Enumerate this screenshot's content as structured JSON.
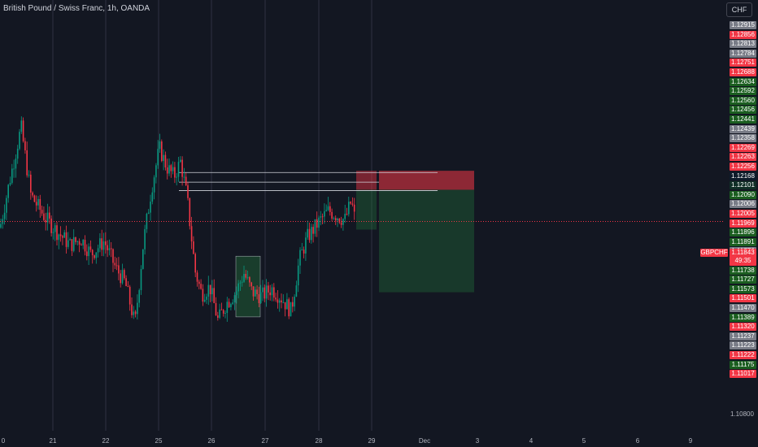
{
  "header": {
    "symbol_title": "British Pound / Swiss Franc, 1h, OANDA",
    "currency_button": "CHF"
  },
  "price_axis": {
    "badges": [
      {
        "label": "1.12915",
        "color": "#787b86"
      },
      {
        "label": "1.12856",
        "color": "#f23645"
      },
      {
        "label": "1.12813",
        "color": "#787b86"
      },
      {
        "label": "1.12784",
        "color": "#787b86"
      },
      {
        "label": "1.12751",
        "color": "#f23645"
      },
      {
        "label": "1.12688",
        "color": "#f23645"
      },
      {
        "label": "1.12634",
        "color": "#1b5e20"
      },
      {
        "label": "1.12592",
        "color": "#1b5e20"
      },
      {
        "label": "1.12560",
        "color": "#1b5e20"
      },
      {
        "label": "1.12456",
        "color": "#1b5e20"
      },
      {
        "label": "1.12441",
        "color": "#1b5e20"
      },
      {
        "label": "1.12439",
        "color": "#787b86"
      },
      {
        "label": "1.12358",
        "color": "#787b86"
      },
      {
        "label": "1.12269",
        "color": "#f23645"
      },
      {
        "label": "1.12263",
        "color": "#f23645"
      },
      {
        "label": "1.12256",
        "color": "#f23645"
      },
      {
        "label": "1.12168",
        "color": "#0d1b2a"
      },
      {
        "label": "1.12101",
        "color": "#0f2e26"
      },
      {
        "label": "1.12090",
        "color": "#1b5e20"
      },
      {
        "label": "1.12006",
        "color": "#787b86"
      },
      {
        "label": "1.12005",
        "color": "#f23645"
      },
      {
        "label": "1.11969",
        "color": "#f23645"
      },
      {
        "label": "1.11896",
        "color": "#1b5e20"
      },
      {
        "label": "1.11891",
        "color": "#1b5e20"
      },
      {
        "label": "1.11776",
        "color": "#787b86"
      },
      {
        "label": "1.11768",
        "color": "#787b86"
      },
      {
        "label": "1.11738",
        "color": "#1b5e20"
      },
      {
        "label": "1.11727",
        "color": "#1b5e20"
      },
      {
        "label": "1.11573",
        "color": "#1b5e20"
      },
      {
        "label": "1.11501",
        "color": "#f23645"
      },
      {
        "label": "1.11470",
        "color": "#787b86"
      },
      {
        "label": "1.11389",
        "color": "#1b5e20"
      },
      {
        "label": "1.11320",
        "color": "#f23645"
      },
      {
        "label": "1.11237",
        "color": "#787b86"
      },
      {
        "label": "1.11223",
        "color": "#787b86"
      },
      {
        "label": "1.11222",
        "color": "#f23645"
      },
      {
        "label": "1.11175",
        "color": "#1b5e20"
      },
      {
        "label": "1.11017",
        "color": "#f23645"
      }
    ],
    "plain_tick": "1.10800",
    "current_symbol": "GBPCHF",
    "current_price": "1.11843",
    "countdown": "49:35"
  },
  "time_axis": {
    "labels": [
      "0",
      "21",
      "22",
      "25",
      "26",
      "27",
      "28",
      "29",
      "Dec",
      "3",
      "4",
      "5",
      "6",
      "9"
    ]
  },
  "chart_data": {
    "type": "candlestick",
    "title": "British Pound / Swiss Franc, 1h, OANDA",
    "symbol": "GBPCHF",
    "timeframe": "1h",
    "source": "OANDA",
    "x_ticks": [
      "0",
      "21",
      "22",
      "25",
      "26",
      "27",
      "28",
      "29",
      "Dec",
      "3",
      "4",
      "5",
      "6",
      "9"
    ],
    "ylim": [
      1.1074,
      1.1301
    ],
    "current_price": 1.11843,
    "price_path": [
      [
        0,
        1.1181
      ],
      [
        12,
        1.1206
      ],
      [
        26,
        1.1234
      ],
      [
        38,
        1.1198
      ],
      [
        56,
        1.1186
      ],
      [
        70,
        1.1179
      ],
      [
        86,
        1.1172
      ],
      [
        100,
        1.1175
      ],
      [
        112,
        1.1167
      ],
      [
        128,
        1.1174
      ],
      [
        142,
        1.116
      ],
      [
        154,
        1.1152
      ],
      [
        166,
        1.113
      ],
      [
        176,
        1.1172
      ],
      [
        186,
        1.1201
      ],
      [
        196,
        1.1223
      ],
      [
        205,
        1.1213
      ],
      [
        214,
        1.1208
      ],
      [
        222,
        1.1216
      ],
      [
        230,
        1.1197
      ],
      [
        240,
        1.1158
      ],
      [
        248,
        1.1146
      ],
      [
        258,
        1.115
      ],
      [
        268,
        1.1132
      ],
      [
        278,
        1.1141
      ],
      [
        290,
        1.1147
      ],
      [
        300,
        1.1157
      ],
      [
        310,
        1.1147
      ],
      [
        322,
        1.1145
      ],
      [
        334,
        1.1149
      ],
      [
        346,
        1.1144
      ],
      [
        358,
        1.1137
      ],
      [
        368,
        1.1164
      ],
      [
        378,
        1.1176
      ],
      [
        392,
        1.1184
      ],
      [
        404,
        1.119
      ],
      [
        416,
        1.1187
      ],
      [
        424,
        1.1185
      ],
      [
        432,
        1.1195
      ],
      [
        437,
        1.1184
      ]
    ],
    "position_tool": {
      "entry": 1.1201,
      "stop": 1.1211,
      "target": 1.1147,
      "x_start": 466,
      "x_end": 583,
      "projection": {
        "x_start": 438,
        "x_end": 463,
        "bottom": 1.118
      }
    },
    "horizontal_lines": [
      1.12101,
      1.1205,
      1.12006
    ],
    "highlight_box": {
      "x_start": 290,
      "x_end": 320,
      "top": 1.1166,
      "bottom": 1.1134
    }
  }
}
